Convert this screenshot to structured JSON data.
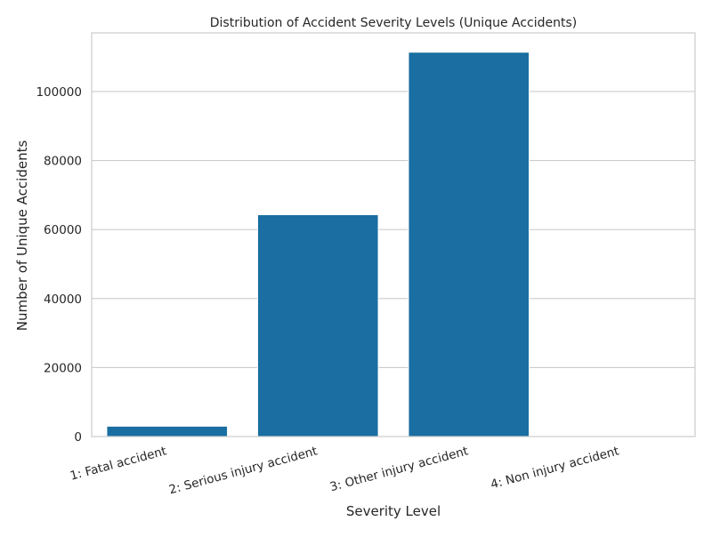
{
  "chart_data": {
    "type": "bar",
    "title": "Distribution of Accident Severity Levels (Unique Accidents)",
    "xlabel": "Severity Level",
    "ylabel": "Number of Unique Accidents",
    "categories": [
      "1: Fatal accident",
      "2: Serious injury accident",
      "3: Other injury accident",
      "4: Non injury accident"
    ],
    "values": [
      3000,
      64300,
      111400,
      0
    ],
    "ylim": [
      0,
      117000
    ],
    "yticks": [
      0,
      20000,
      40000,
      60000,
      80000,
      100000
    ],
    "grid": true,
    "bar_color": "#1a6ea1",
    "grid_color": "#cccccc",
    "spine_color": "#cccccc"
  }
}
